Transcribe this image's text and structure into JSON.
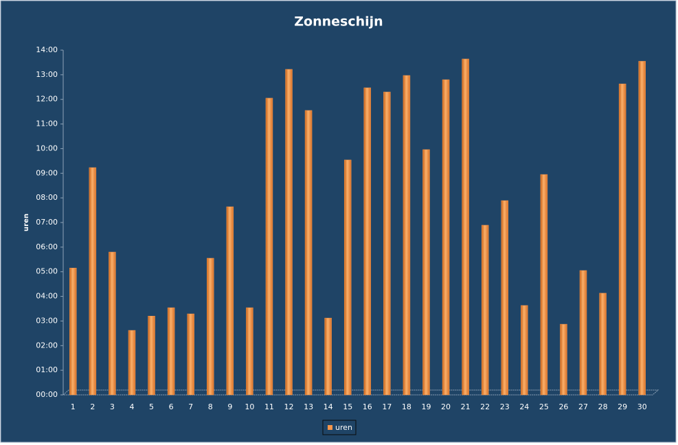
{
  "chart_data": {
    "type": "bar",
    "title": "Zonneschijn",
    "y_label": "uren",
    "categories": [
      "1",
      "2",
      "3",
      "4",
      "5",
      "6",
      "7",
      "8",
      "9",
      "10",
      "11",
      "12",
      "13",
      "14",
      "15",
      "16",
      "17",
      "18",
      "19",
      "20",
      "21",
      "22",
      "23",
      "24",
      "25",
      "26",
      "27",
      "28",
      "29",
      "30"
    ],
    "series": [
      {
        "name": "uren",
        "color": "#f7964a",
        "values": [
          5.15,
          9.23,
          5.8,
          2.62,
          3.2,
          3.54,
          3.29,
          5.55,
          7.64,
          3.54,
          12.05,
          13.22,
          11.55,
          3.12,
          9.54,
          12.47,
          12.3,
          12.97,
          9.96,
          12.8,
          13.64,
          6.89,
          7.89,
          3.63,
          8.95,
          2.87,
          5.05,
          4.13,
          12.63,
          13.55
        ]
      }
    ],
    "ylim": [
      0,
      14
    ],
    "yticks": [
      {
        "value": 0,
        "label": "00:00"
      },
      {
        "value": 1,
        "label": "01:00"
      },
      {
        "value": 2,
        "label": "02:00"
      },
      {
        "value": 3,
        "label": "03:00"
      },
      {
        "value": 4,
        "label": "04:00"
      },
      {
        "value": 5,
        "label": "05:00"
      },
      {
        "value": 6,
        "label": "06:00"
      },
      {
        "value": 7,
        "label": "07:00"
      },
      {
        "value": 8,
        "label": "08:00"
      },
      {
        "value": 9,
        "label": "09:00"
      },
      {
        "value": 10,
        "label": "10:00"
      },
      {
        "value": 11,
        "label": "11:00"
      },
      {
        "value": 12,
        "label": "12:00"
      },
      {
        "value": 13,
        "label": "13:00"
      },
      {
        "value": 14,
        "label": "14:00"
      }
    ],
    "grid": false,
    "legend": "bottom"
  }
}
